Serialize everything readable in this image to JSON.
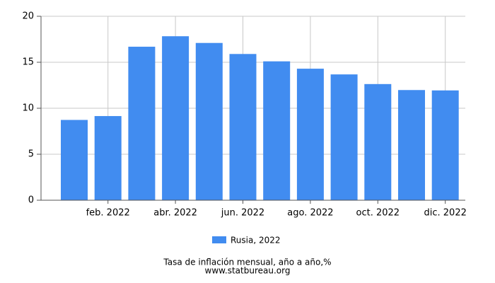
{
  "chart_data": {
    "type": "bar",
    "title": "Tasa de inflación mensual, año a año,%",
    "source": "www.statbureau.org",
    "categories": [
      null,
      "feb. 2022",
      null,
      "abr. 2022",
      null,
      "jun. 2022",
      null,
      "ago. 2022",
      null,
      "oct. 2022",
      null,
      "dic. 2022"
    ],
    "series": [
      {
        "name": "Rusia, 2022",
        "color": "#418cf0",
        "values": [
          8.73,
          9.15,
          16.69,
          17.83,
          17.1,
          15.9,
          15.1,
          14.3,
          13.68,
          12.63,
          11.98,
          11.94
        ]
      }
    ],
    "ylim": [
      0,
      20
    ],
    "yticks": [
      0,
      5,
      10,
      15,
      20
    ],
    "grid": true
  }
}
